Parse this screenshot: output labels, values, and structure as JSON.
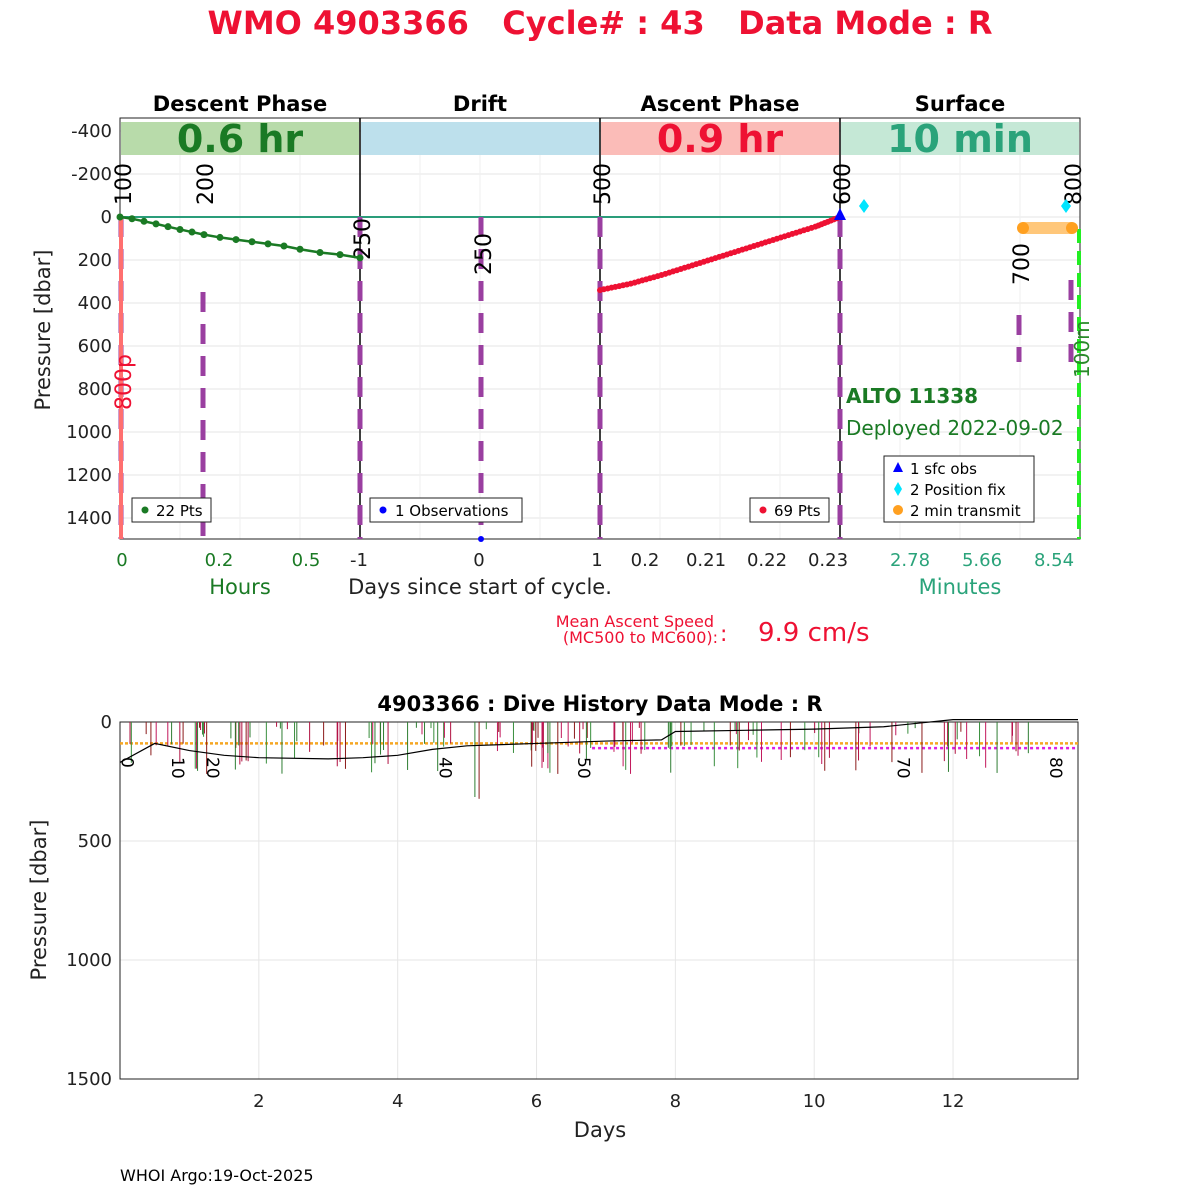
{
  "title": "WMO 4903366   Cycle# : 43   Data Mode : R",
  "footer": "WHOI Argo:19-Oct-2025",
  "top_panel": {
    "ylabel": "Pressure [dbar]",
    "xlabel_center": "Days since start of cycle.",
    "phases": [
      {
        "name": "Descent Phase",
        "duration": "0.6 hr",
        "bar_color": "#b8dbaa",
        "text_color": "#1a7a24"
      },
      {
        "name": "Drift",
        "duration": "",
        "bar_color": "#bde0ec",
        "text_color": "#000000"
      },
      {
        "name": "Ascent Phase",
        "duration": "0.9 hr",
        "bar_color": "#fbbcb8",
        "text_color": "#ee1133"
      },
      {
        "name": "Surface",
        "duration": "10 min",
        "bar_color": "#c5e8d6",
        "text_color": "#2aa37a"
      }
    ],
    "descent_xticks": [
      "0",
      "0.2",
      "0.5"
    ],
    "descent_xlabel": "Hours",
    "drift_xticks": [
      "-1",
      "0",
      "1"
    ],
    "ascent_xticks": [
      "0.2",
      "0.21",
      "0.22",
      "0.23"
    ],
    "surface_xticks": [
      "2.78",
      "5.66",
      "8.54"
    ],
    "surface_xlabel": "Minutes",
    "marker_labels": [
      "100",
      "200",
      "250",
      "250",
      "500",
      "600",
      "700",
      "800"
    ],
    "red_side_label": "800p",
    "green_side_label": "100m",
    "float_name": "ALTO 11338",
    "deployed": "Deployed 2022-09-02",
    "legends": {
      "descent": "22 Pts",
      "drift": "1 Observations",
      "ascent": "69 Pts",
      "surface": [
        "1 sfc obs",
        "2 Position fix",
        "2 min transmit"
      ]
    },
    "ascent_speed_label_1": "Mean Ascent Speed",
    "ascent_speed_label_2": "(MC500 to MC600):",
    "ascent_speed_value": "9.9 cm/s"
  },
  "bottom_panel": {
    "title": "4903366 : Dive History      Data Mode : R",
    "xlabel": "Days",
    "ylabel": "Pressure [dbar]",
    "cycle_labels": [
      "0",
      "10",
      "20",
      "40",
      "50",
      "70",
      "80"
    ]
  },
  "chart_data": [
    {
      "type": "line",
      "title": "WMO 4903366   Cycle# : 43   Data Mode : R",
      "ylabel": "Pressure [dbar]",
      "ylim": [
        1500,
        -450
      ],
      "yticks": [
        -400,
        -200,
        0,
        200,
        400,
        600,
        800,
        1000,
        1200,
        1400
      ],
      "series": [
        {
          "name": "22 Pts",
          "color": "#1a7a24",
          "x_hours": [
            0,
            0.03,
            0.06,
            0.09,
            0.12,
            0.15,
            0.18,
            0.21,
            0.25,
            0.29,
            0.33,
            0.37,
            0.41,
            0.45,
            0.5,
            0.55,
            0.6
          ],
          "y": [
            0,
            8,
            20,
            32,
            45,
            58,
            70,
            82,
            95,
            105,
            115,
            125,
            135,
            150,
            165,
            175,
            190
          ]
        },
        {
          "name": "69 Pts",
          "color": "#ee1133",
          "x_days": [
            0.195,
            0.2,
            0.205,
            0.21,
            0.215,
            0.22,
            0.225,
            0.23,
            0.234
          ],
          "y": [
            340,
            310,
            270,
            225,
            180,
            135,
            90,
            45,
            0
          ]
        },
        {
          "name": "1 sfc obs",
          "color": "#0000ff",
          "y": [
            0
          ]
        },
        {
          "name": "2 Position fix",
          "color": "#00e5ff",
          "y": [
            -45,
            -45
          ]
        },
        {
          "name": "2 min transmit",
          "color": "#ffa020",
          "y": [
            50,
            50
          ]
        }
      ]
    },
    {
      "type": "line",
      "title": "4903366 : Dive History      Data Mode : R",
      "xlabel": "Days",
      "ylabel": "Pressure [dbar]",
      "xlim": [
        0,
        13.8
      ],
      "ylim": [
        1500,
        0
      ],
      "xticks": [
        2,
        4,
        6,
        8,
        10,
        12
      ],
      "yticks": [
        0,
        500,
        1000,
        1500
      ],
      "reference_lines": [
        {
          "y": 90,
          "color": "#f5a623",
          "style": "dotted"
        },
        {
          "y": 110,
          "color": "#e020e0",
          "style": "dotted",
          "from_day": 6.8
        }
      ],
      "series": [
        {
          "name": "",
          "color": "#000000",
          "x": [
            0,
            0.5,
            1,
            1.5,
            2,
            3,
            3.5,
            4,
            4.5,
            5,
            6,
            7,
            7.8,
            8,
            9,
            10,
            11,
            11.5,
            12,
            13.8
          ],
          "y": [
            170,
            90,
            120,
            140,
            150,
            155,
            150,
            140,
            115,
            100,
            90,
            80,
            75,
            40,
            35,
            30,
            20,
            5,
            -10,
            -10
          ]
        }
      ]
    }
  ]
}
